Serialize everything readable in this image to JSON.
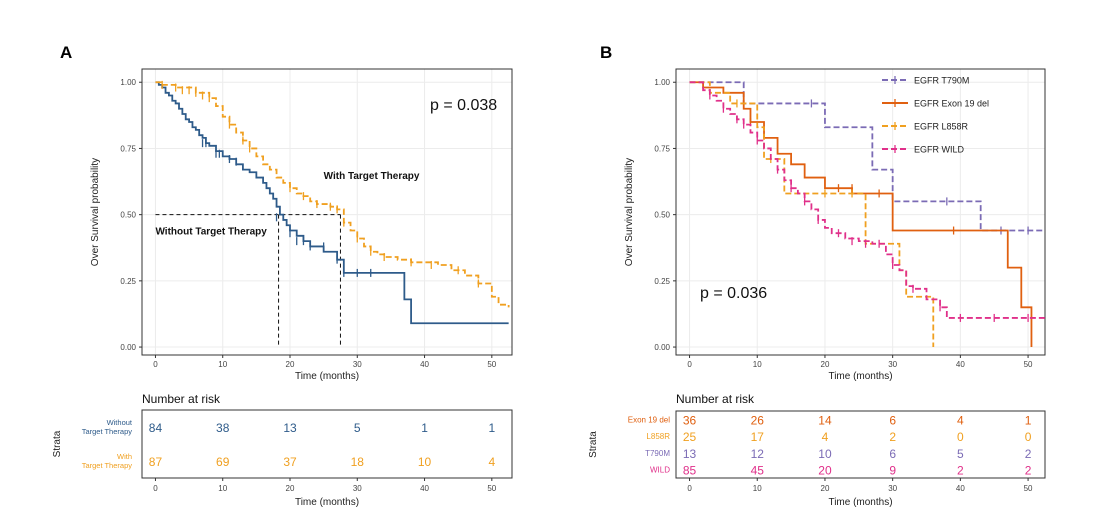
{
  "figure": {
    "panel_a_letter": "A",
    "panel_b_letter": "B",
    "colors": {
      "without": "#2e5b8a",
      "with": "#f0a020",
      "t790m": "#7b6bb5",
      "exon19": "#e06010",
      "l858r": "#f0a020",
      "wild": "#e0308a",
      "grid": "#ececec",
      "axis": "#333333"
    }
  },
  "chart_data": [
    {
      "type": "line",
      "subtype": "kaplan-meier",
      "panel": "A",
      "title": "",
      "xlabel": "Time (months)",
      "ylabel": "Over Survival probability",
      "xlim": [
        -2,
        53
      ],
      "ylim": [
        -0.03,
        1.05
      ],
      "xticks": [
        0,
        10,
        20,
        30,
        40,
        50
      ],
      "yticks": [
        0,
        0.25,
        0.5,
        0.75,
        1.0
      ],
      "ytick_labels": [
        "0.00",
        "0.25",
        "0.50",
        "0.75",
        "1.00"
      ],
      "pvalue": "p = 0.038",
      "grid": true,
      "annotations": [
        {
          "text": "With Target Therapy",
          "x": 25,
          "y": 0.635
        },
        {
          "text": "Without Target Therapy",
          "x": 0,
          "y": 0.425
        }
      ],
      "median_lines": [
        {
          "x": 18.3,
          "y": 0.5
        },
        {
          "x": 27.5,
          "y": 0.5
        }
      ],
      "series": [
        {
          "key": "without",
          "dashed": false,
          "x": [
            0,
            0.5,
            1,
            1.5,
            2,
            2.5,
            3,
            3.5,
            4,
            4.5,
            5,
            5.5,
            6,
            6.5,
            7,
            7.5,
            8,
            9,
            10,
            11,
            12,
            13,
            14,
            15,
            16,
            16.5,
            17,
            17.5,
            18,
            18.5,
            19,
            19.5,
            20,
            21,
            22,
            23,
            25,
            27,
            28,
            30,
            32,
            37,
            38,
            41,
            45,
            48,
            52.5
          ],
          "y": [
            1.0,
            0.99,
            0.98,
            0.96,
            0.95,
            0.93,
            0.92,
            0.9,
            0.88,
            0.86,
            0.85,
            0.83,
            0.82,
            0.8,
            0.79,
            0.77,
            0.76,
            0.74,
            0.72,
            0.71,
            0.69,
            0.67,
            0.66,
            0.64,
            0.62,
            0.6,
            0.58,
            0.56,
            0.53,
            0.5,
            0.48,
            0.46,
            0.44,
            0.42,
            0.4,
            0.38,
            0.36,
            0.33,
            0.28,
            0.28,
            0.28,
            0.18,
            0.09,
            0.09,
            0.09,
            0.09,
            0.09
          ],
          "censor_x": [
            7,
            7.5,
            9,
            9.5,
            11,
            12,
            18,
            20,
            21,
            22,
            23,
            25,
            27,
            28,
            30,
            32
          ],
          "censor_y": [
            0.77,
            0.77,
            0.73,
            0.73,
            0.71,
            0.7,
            0.49,
            0.43,
            0.4,
            0.4,
            0.38,
            0.38,
            0.33,
            0.28,
            0.28,
            0.28
          ]
        },
        {
          "key": "with",
          "dashed": true,
          "x": [
            0,
            1,
            3,
            6,
            8,
            9,
            10,
            11,
            12,
            13,
            14,
            15,
            16,
            17,
            18,
            19,
            20,
            21,
            22,
            23,
            24,
            25,
            26,
            27,
            28,
            29,
            30,
            31,
            32,
            33,
            34,
            36,
            38,
            40,
            42,
            44,
            46,
            48,
            50,
            51,
            52.5
          ],
          "y": [
            1.0,
            0.99,
            0.98,
            0.96,
            0.94,
            0.91,
            0.87,
            0.84,
            0.81,
            0.78,
            0.75,
            0.72,
            0.69,
            0.67,
            0.64,
            0.62,
            0.6,
            0.58,
            0.57,
            0.55,
            0.54,
            0.54,
            0.53,
            0.52,
            0.47,
            0.44,
            0.41,
            0.38,
            0.36,
            0.35,
            0.34,
            0.33,
            0.32,
            0.32,
            0.31,
            0.29,
            0.27,
            0.24,
            0.19,
            0.16,
            0.15
          ],
          "censor_x": [
            1,
            3,
            4,
            5,
            6,
            7,
            8,
            11,
            13,
            14,
            20,
            22,
            24,
            26,
            27,
            28,
            30,
            32,
            34,
            38,
            41,
            45,
            48
          ],
          "censor_y": [
            0.99,
            0.98,
            0.97,
            0.97,
            0.96,
            0.95,
            0.94,
            0.84,
            0.78,
            0.75,
            0.6,
            0.57,
            0.54,
            0.53,
            0.52,
            0.47,
            0.41,
            0.36,
            0.34,
            0.32,
            0.31,
            0.29,
            0.24
          ]
        }
      ],
      "risk_table": {
        "title": "Number at risk",
        "ylabel": "Strata",
        "xlabel": "Time (months)",
        "times": [
          0,
          10,
          20,
          30,
          40,
          50
        ],
        "rows": [
          {
            "key": "without",
            "label_line1": "Without",
            "label_line2": "Target Therapy",
            "counts": [
              84,
              38,
              13,
              5,
              1,
              1
            ]
          },
          {
            "key": "with",
            "label_line1": "With",
            "label_line2": "Target Therapy",
            "counts": [
              87,
              69,
              37,
              18,
              10,
              4
            ]
          }
        ]
      }
    },
    {
      "type": "line",
      "subtype": "kaplan-meier",
      "panel": "B",
      "title": "",
      "xlabel": "Time (months)",
      "ylabel": "Over Survival probability",
      "xlim": [
        -2,
        52.5
      ],
      "ylim": [
        -0.03,
        1.05
      ],
      "xticks": [
        0,
        10,
        20,
        30,
        40,
        50
      ],
      "yticks": [
        0,
        0.25,
        0.5,
        0.75,
        1.0
      ],
      "ytick_labels": [
        "0.00",
        "0.25",
        "0.50",
        "0.75",
        "1.00"
      ],
      "pvalue": "p = 0.036",
      "grid": true,
      "legend_position": "top-right",
      "series": [
        {
          "key": "t790m",
          "name": "EGFR T790M",
          "dashed": true,
          "x": [
            0,
            8,
            8,
            20,
            20,
            27,
            27,
            30,
            30,
            43,
            43,
            52.5
          ],
          "y": [
            1.0,
            1.0,
            0.92,
            0.92,
            0.83,
            0.83,
            0.67,
            0.67,
            0.55,
            0.55,
            0.44,
            0.44
          ],
          "censor_x": [
            18,
            38,
            46,
            50
          ],
          "censor_y": [
            0.92,
            0.55,
            0.44,
            0.44
          ]
        },
        {
          "key": "exon19",
          "name": "EGFR Exon 19 del",
          "dashed": false,
          "x": [
            0,
            2,
            2,
            5,
            5,
            8,
            8,
            9,
            9,
            11,
            11,
            13,
            13,
            15,
            15,
            17,
            17,
            20,
            20,
            24,
            24,
            30,
            30,
            39,
            39,
            47,
            47,
            49,
            49,
            50.5,
            50.5
          ],
          "y": [
            1.0,
            1.0,
            0.98,
            0.98,
            0.96,
            0.96,
            0.9,
            0.9,
            0.85,
            0.85,
            0.79,
            0.79,
            0.73,
            0.73,
            0.69,
            0.69,
            0.64,
            0.64,
            0.6,
            0.6,
            0.58,
            0.58,
            0.44,
            0.44,
            0.44,
            0.44,
            0.3,
            0.3,
            0.15,
            0.15,
            0.0
          ],
          "censor_x": [
            9,
            22,
            24,
            28,
            39
          ],
          "censor_y": [
            0.85,
            0.6,
            0.6,
            0.58,
            0.44
          ]
        },
        {
          "key": "l858r",
          "name": "EGFR L858R",
          "dashed": true,
          "x": [
            0,
            3,
            3,
            6,
            6,
            10,
            10,
            11,
            11,
            14,
            14,
            26,
            26,
            31,
            31,
            32,
            32,
            36,
            36
          ],
          "y": [
            1.0,
            1.0,
            0.96,
            0.96,
            0.92,
            0.92,
            0.83,
            0.83,
            0.71,
            0.71,
            0.58,
            0.58,
            0.39,
            0.39,
            0.29,
            0.29,
            0.19,
            0.19,
            0.0
          ],
          "censor_x": [
            7,
            12,
            20,
            24
          ],
          "censor_y": [
            0.92,
            0.71,
            0.58,
            0.58
          ]
        },
        {
          "key": "wild",
          "name": "EGFR  WILD",
          "dashed": true,
          "x": [
            0,
            2,
            3,
            4,
            5,
            6,
            7,
            8,
            9,
            10,
            11,
            12,
            13,
            14,
            15,
            16,
            17,
            18,
            19,
            20,
            21,
            23,
            25,
            27,
            29,
            30,
            31,
            32,
            33,
            35,
            37,
            38,
            52.5
          ],
          "y": [
            1.0,
            0.97,
            0.95,
            0.93,
            0.9,
            0.88,
            0.86,
            0.84,
            0.81,
            0.78,
            0.75,
            0.71,
            0.67,
            0.63,
            0.6,
            0.58,
            0.55,
            0.52,
            0.48,
            0.45,
            0.43,
            0.41,
            0.4,
            0.39,
            0.35,
            0.31,
            0.29,
            0.23,
            0.22,
            0.18,
            0.15,
            0.11,
            0.11
          ],
          "censor_x": [
            3,
            5,
            7,
            8,
            10,
            13,
            15,
            17,
            19,
            22,
            24,
            26,
            28,
            30,
            33,
            37,
            40,
            45,
            50
          ],
          "censor_y": [
            0.95,
            0.9,
            0.86,
            0.84,
            0.78,
            0.67,
            0.6,
            0.55,
            0.48,
            0.43,
            0.4,
            0.39,
            0.39,
            0.31,
            0.22,
            0.15,
            0.11,
            0.11,
            0.11
          ]
        }
      ],
      "risk_table": {
        "title": "Number at risk",
        "ylabel": "Strata",
        "xlabel": "Time (months)",
        "times": [
          0,
          10,
          20,
          30,
          40,
          50
        ],
        "rows": [
          {
            "key": "exon19",
            "label_line1": "Exon 19 del",
            "counts": [
              36,
              26,
              14,
              6,
              4,
              1
            ]
          },
          {
            "key": "l858r",
            "label_line1": "L858R",
            "counts": [
              25,
              17,
              4,
              2,
              0,
              0
            ]
          },
          {
            "key": "t790m",
            "label_line1": "T790M",
            "counts": [
              13,
              12,
              10,
              6,
              5,
              2
            ]
          },
          {
            "key": "wild",
            "label_line1": "WILD",
            "counts": [
              85,
              45,
              20,
              9,
              2,
              2
            ]
          }
        ]
      }
    }
  ]
}
